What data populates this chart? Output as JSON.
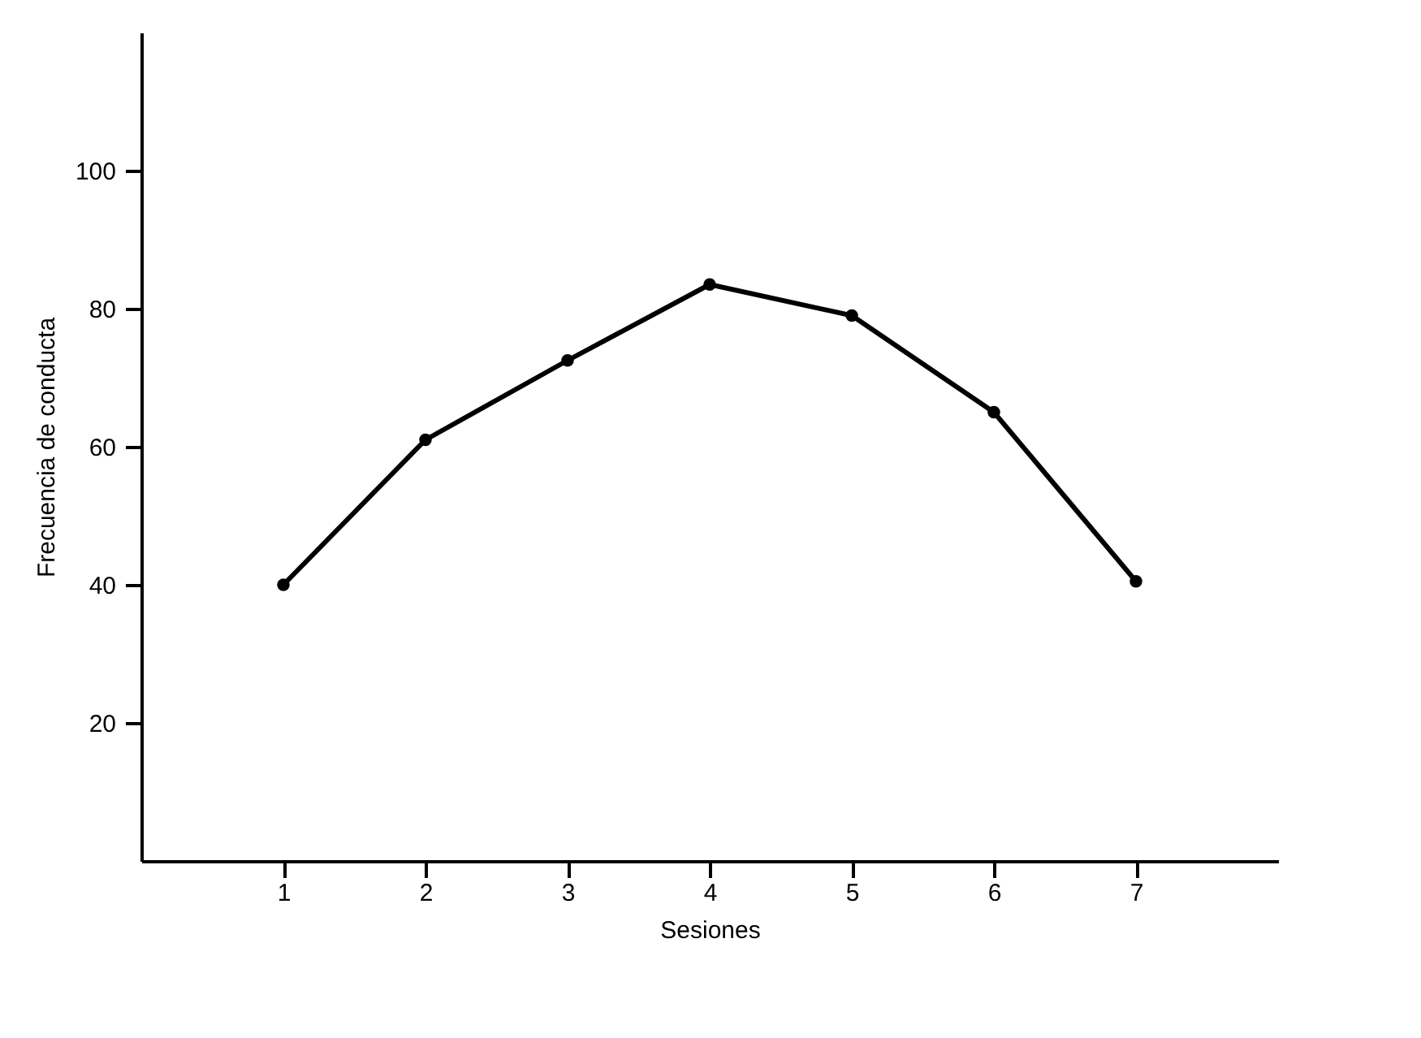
{
  "chart_data": {
    "type": "line",
    "xlabel": "Sesiones",
    "ylabel": "Frecuencia de conducta",
    "x": [
      1,
      2,
      3,
      4,
      5,
      6,
      7
    ],
    "series": [
      {
        "color": "#000000",
        "values": [
          40,
          61,
          72.5,
          83.5,
          79,
          65,
          40.5
        ]
      }
    ],
    "xlim": [
      0,
      8
    ],
    "xticks": [
      1,
      2,
      3,
      4,
      5,
      6,
      7
    ],
    "ylim": [
      0,
      120
    ],
    "yticks": [
      20,
      40,
      60,
      80,
      100
    ],
    "marker": "circle",
    "line_style": "solid",
    "grid": false
  }
}
